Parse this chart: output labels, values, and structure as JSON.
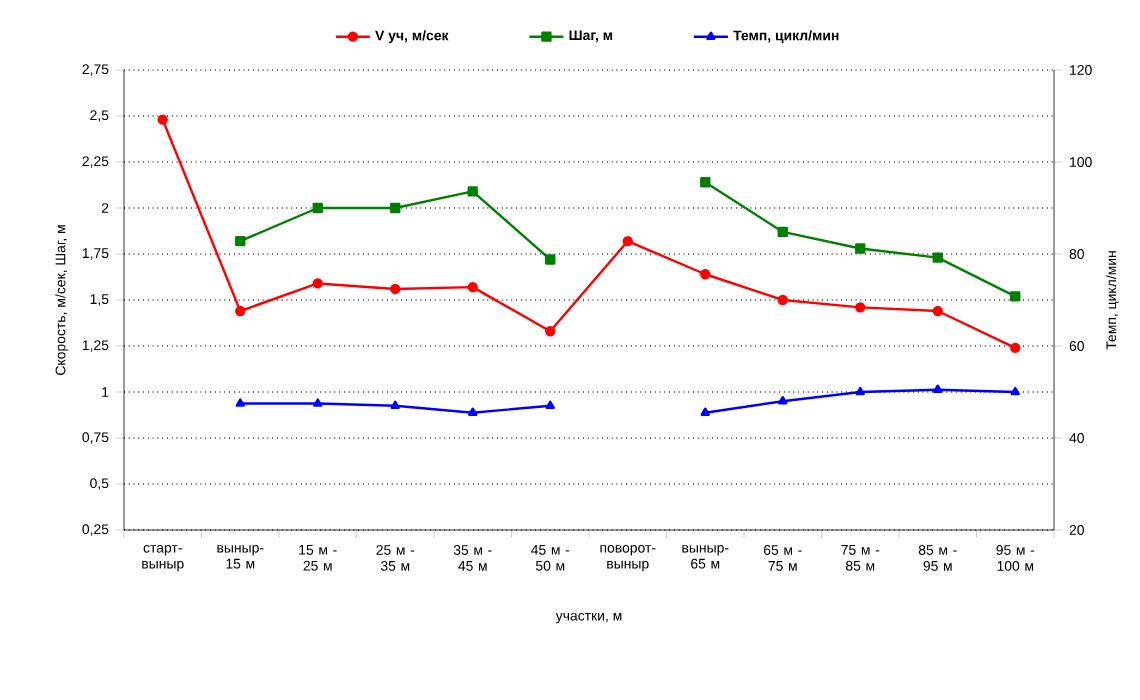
{
  "chart_data": {
    "type": "line",
    "xlabel": "участки, м",
    "ylabel": "Скорость, м/сек, Шаг, м",
    "y2label": "Темп, цикл/мин",
    "categories": [
      "старт-выныр",
      "выныр-15 м",
      "15 м - 25 м",
      "25 м - 35 м",
      "35 м - 45 м",
      "45 м - 50 м",
      "поворот-выныр",
      "выныр-65 м",
      "65 м - 75 м",
      "75 м - 85 м",
      "85 м - 95 м",
      "95 м - 100 м"
    ],
    "series": [
      {
        "name": "V уч, м/сек",
        "color": "#ff0000",
        "marker": "circle",
        "values": [
          2.48,
          1.44,
          1.59,
          1.56,
          1.57,
          1.33,
          1.82,
          1.64,
          1.5,
          1.46,
          1.44,
          1.24
        ]
      },
      {
        "name": "Шаг, м",
        "color": "#008000",
        "marker": "square",
        "values": [
          null,
          1.82,
          2.0,
          2.0,
          2.09,
          1.72,
          null,
          2.14,
          1.87,
          1.78,
          1.73,
          1.52
        ]
      },
      {
        "name": "Темп, цикл/мин",
        "color": "#0000ff",
        "marker": "triangle",
        "axis": "y2",
        "values": [
          null,
          47.5,
          47.5,
          47,
          45.5,
          47,
          null,
          45.5,
          48,
          50,
          50.5,
          50
        ]
      }
    ],
    "ylim": [
      0.25,
      2.75
    ],
    "yticks": [
      {
        "value": 0.25,
        "label": "0,25"
      },
      {
        "value": 0.5,
        "label": "0,5"
      },
      {
        "value": 0.75,
        "label": "0,75"
      },
      1,
      {
        "value": 1.25,
        "label": "1,25"
      },
      {
        "value": 1.5,
        "label": "1,5"
      },
      {
        "value": 1.75,
        "label": "1,75"
      },
      2,
      {
        "value": 2.25,
        "label": "2,25"
      },
      {
        "value": 2.5,
        "label": "2,5"
      },
      {
        "value": 2.75,
        "label": "2,75"
      }
    ],
    "y2lim": [
      20,
      120
    ],
    "y2ticks": [
      20,
      40,
      60,
      80,
      100,
      120
    ],
    "grid": "y",
    "legend": "top"
  }
}
